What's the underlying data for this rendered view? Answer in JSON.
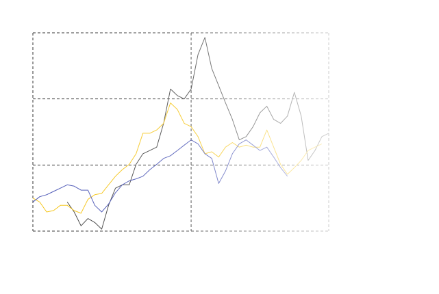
{
  "chart_data": {
    "type": "line",
    "x": [
      0,
      1,
      2,
      3,
      4,
      5,
      6,
      7,
      8,
      9,
      10,
      11,
      12,
      13,
      14,
      15,
      16,
      17,
      18,
      19,
      20,
      21,
      22,
      23,
      24,
      25,
      26,
      27,
      28,
      29,
      30,
      31,
      32,
      33,
      34,
      35,
      36,
      37,
      38,
      39,
      40,
      41,
      42,
      43
    ],
    "series": [
      {
        "color": "#444444",
        "values": [
          null,
          null,
          null,
          null,
          null,
          0.44,
          0.29,
          0.08,
          0.19,
          0.13,
          0.03,
          0.39,
          0.65,
          0.7,
          0.7,
          1.01,
          1.17,
          1.22,
          1.27,
          1.63,
          2.15,
          2.05,
          2.0,
          2.15,
          2.67,
          2.93,
          2.46,
          2.2,
          1.94,
          1.69,
          1.38,
          1.43,
          1.58,
          1.79,
          1.89,
          1.69,
          1.63,
          1.74,
          2.1,
          1.74,
          1.07,
          1.22,
          1.43,
          1.48
        ]
      },
      {
        "color": "#f5c518",
        "values": [
          0.5,
          0.44,
          0.29,
          0.31,
          0.39,
          0.39,
          0.31,
          0.27,
          0.48,
          0.55,
          0.57,
          0.7,
          0.83,
          0.93,
          1.01,
          1.17,
          1.48,
          1.48,
          1.53,
          1.63,
          1.94,
          1.84,
          1.63,
          1.58,
          1.43,
          1.17,
          1.2,
          1.12,
          1.27,
          1.34,
          1.27,
          1.3,
          1.27,
          1.27,
          1.53,
          1.27,
          1.01,
          0.86,
          0.96,
          1.07,
          1.22,
          1.27,
          1.32,
          null
        ]
      },
      {
        "color": "#4a55b5",
        "values": [
          0.44,
          0.52,
          0.55,
          0.6,
          0.65,
          0.7,
          0.68,
          0.62,
          0.62,
          0.39,
          0.29,
          0.41,
          0.58,
          0.7,
          0.76,
          0.79,
          0.83,
          0.93,
          1.01,
          1.1,
          1.14,
          1.22,
          1.3,
          1.38,
          1.32,
          1.17,
          1.1,
          0.72,
          0.91,
          1.17,
          1.32,
          1.38,
          1.3,
          1.22,
          1.27,
          1.12,
          0.96,
          0.83,
          null,
          null,
          null,
          null,
          null,
          null
        ]
      }
    ],
    "xlim": [
      0,
      43
    ],
    "xticks": [
      0,
      23,
      43
    ],
    "ylim": [
      0,
      3
    ],
    "yticks": [
      0,
      1,
      2,
      3
    ],
    "grid": true
  }
}
